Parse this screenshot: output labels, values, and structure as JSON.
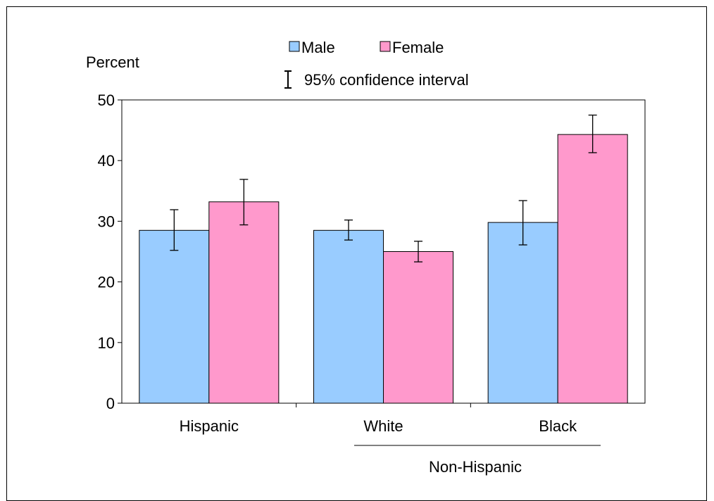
{
  "chart_data": {
    "type": "bar",
    "ylabel": "Percent",
    "categories": [
      "Hispanic",
      "White",
      "Black"
    ],
    "group_label": "Non-Hispanic",
    "ylim": [
      0,
      50
    ],
    "yticks": [
      0,
      10,
      20,
      30,
      40,
      50
    ],
    "grid": false,
    "legend": {
      "placement": "top-center",
      "ci_label": "95% confidence interval"
    },
    "series": [
      {
        "name": "Male",
        "color": "#99ccff",
        "values": [
          28.5,
          28.5,
          29.8
        ],
        "ci_low": [
          25.2,
          26.9,
          26.1
        ],
        "ci_high": [
          31.9,
          30.2,
          33.4
        ]
      },
      {
        "name": "Female",
        "color": "#ff99cc",
        "values": [
          33.2,
          25.0,
          44.3
        ],
        "ci_low": [
          29.4,
          23.3,
          41.3
        ],
        "ci_high": [
          36.9,
          26.7,
          47.5
        ]
      }
    ]
  }
}
